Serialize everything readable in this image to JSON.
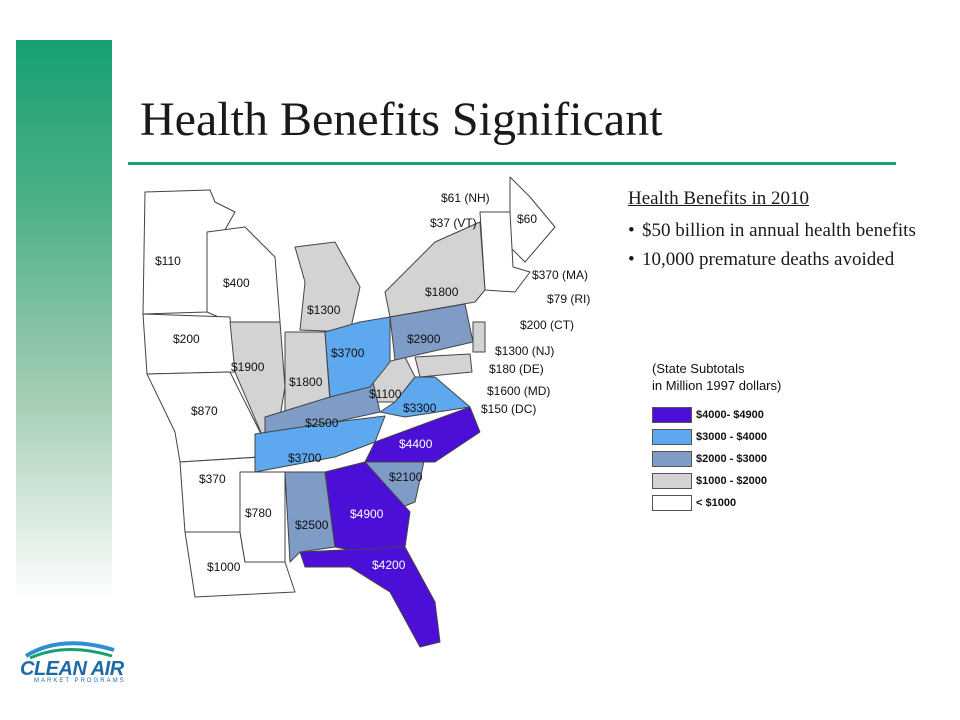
{
  "slide": {
    "title": "Health Benefits Significant"
  },
  "info": {
    "heading": "Health Benefits in 2010",
    "bullets": [
      "$50 billion in annual health benefits",
      "10,000 premature deaths avoided"
    ],
    "bullet_glyph": "•"
  },
  "legend": {
    "title_line1": "(State Subtotals",
    "title_line2": "in Million 1997 dollars)",
    "items": [
      {
        "label": "$4000- $4900",
        "color": "#4b0fd8"
      },
      {
        "label": "$3000 - $4000",
        "color": "#5ea8f0"
      },
      {
        "label": "$2000 - $3000",
        "color": "#7f9cc6"
      },
      {
        "label": "$1000 - $2000",
        "color": "#d3d3d3"
      },
      {
        "label": "< $1000",
        "color": "#ffffff"
      }
    ]
  },
  "map": {
    "states": [
      {
        "name": "MN",
        "value": "$110"
      },
      {
        "name": "WI",
        "value": "$400"
      },
      {
        "name": "IA",
        "value": "$200"
      },
      {
        "name": "IL",
        "value": "$1900"
      },
      {
        "name": "MO",
        "value": "$870"
      },
      {
        "name": "AR",
        "value": "$370"
      },
      {
        "name": "LA",
        "value": "$1000"
      },
      {
        "name": "MS",
        "value": "$780"
      },
      {
        "name": "AL",
        "value": "$2500"
      },
      {
        "name": "TN",
        "value": "$3700"
      },
      {
        "name": "KY",
        "value": "$2500"
      },
      {
        "name": "IN",
        "value": "$1800"
      },
      {
        "name": "MI",
        "value": "$1300"
      },
      {
        "name": "OH",
        "value": "$3700"
      },
      {
        "name": "WV",
        "value": "$1100"
      },
      {
        "name": "VA",
        "value": "$3300"
      },
      {
        "name": "NC",
        "value": "$4400"
      },
      {
        "name": "SC",
        "value": "$2100"
      },
      {
        "name": "GA",
        "value": "$4900"
      },
      {
        "name": "FL",
        "value": "$4200"
      },
      {
        "name": "PA",
        "value": "$2900"
      },
      {
        "name": "NY",
        "value": "$1800"
      },
      {
        "name": "ME",
        "value": "$60"
      },
      {
        "name": "NH",
        "value": "$61 (NH)"
      },
      {
        "name": "VT",
        "value": "$37 (VT)"
      },
      {
        "name": "MA",
        "value": "$370 (MA)"
      },
      {
        "name": "RI",
        "value": "$79 (RI)"
      },
      {
        "name": "CT",
        "value": "$200 (CT)"
      },
      {
        "name": "NJ",
        "value": "$1300 (NJ)"
      },
      {
        "name": "DE",
        "value": "$180 (DE)"
      },
      {
        "name": "MD",
        "value": "$1600 (MD)"
      },
      {
        "name": "DC",
        "value": "$150 (DC)"
      }
    ]
  },
  "logo": {
    "text": "CLEAN AIR",
    "subtext": "MARKET PROGRAMS"
  },
  "colors": {
    "accent_green": "#16a172",
    "tier_4000_4900": "#4b0fd8",
    "tier_3000_4000": "#5ea8f0",
    "tier_2000_3000": "#7f9cc6",
    "tier_1000_2000": "#d3d3d3",
    "tier_under_1000": "#ffffff"
  }
}
